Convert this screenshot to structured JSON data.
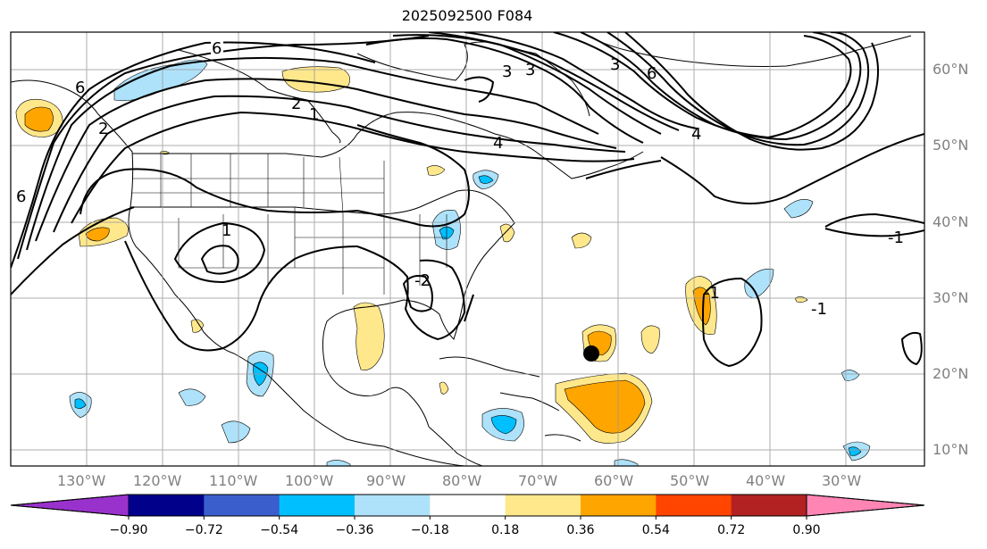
{
  "title": "2025092500 F084",
  "lon_labels": [
    "130°W",
    "120°W",
    "110°W",
    "100°W",
    "90°W",
    "80°W",
    "70°W",
    "60°W",
    "50°W",
    "40°W",
    "30°W"
  ],
  "lat_labels": [
    "60°N",
    "50°N",
    "40°N",
    "30°N",
    "20°N",
    "10°N"
  ],
  "contour_labels": [
    "6",
    "3",
    "3",
    "3",
    "6",
    "6",
    "2",
    "1",
    "1",
    "4",
    "4",
    "6",
    "2",
    "-2",
    "-1",
    "-1",
    "-1"
  ],
  "colorbar": {
    "ticks": [
      "−0.90",
      "−0.72",
      "−0.54",
      "−0.36",
      "−0.18",
      "0.18",
      "0.36",
      "0.54",
      "0.72",
      "0.90"
    ],
    "colors": [
      "#9932cc",
      "#00008b",
      "#3a5fcd",
      "#00bfff",
      "#aee2fa",
      "#ffffff",
      "#ffe88c",
      "#ffa500",
      "#ff4500",
      "#b22222",
      "#ff85b4"
    ]
  },
  "marker": "storm-position"
}
